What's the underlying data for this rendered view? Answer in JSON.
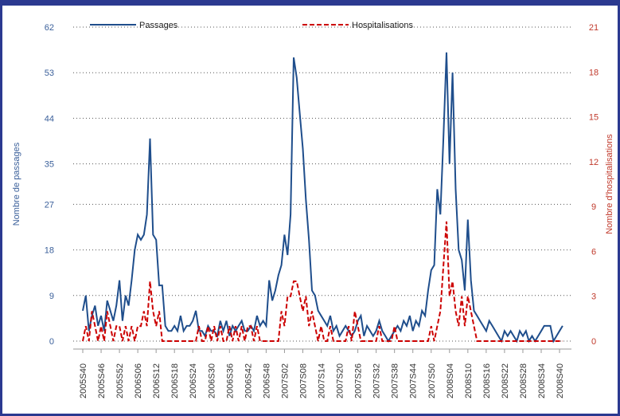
{
  "chart_data": {
    "type": "line",
    "y_label": "Nombre de passages",
    "y2_label": "Nombre d'hospitalisations",
    "categories": [
      "2005S40",
      null,
      null,
      null,
      null,
      null,
      "2005S46",
      null,
      null,
      null,
      null,
      null,
      "2005S52",
      null,
      null,
      null,
      null,
      null,
      "2006S06",
      null,
      null,
      null,
      null,
      null,
      "2006S12",
      null,
      null,
      null,
      null,
      null,
      "2006S18",
      null,
      null,
      null,
      null,
      null,
      "2006S24",
      null,
      null,
      null,
      null,
      null,
      "2006S30",
      null,
      null,
      null,
      null,
      null,
      "2006S36",
      null,
      null,
      null,
      null,
      null,
      "2006S42",
      null,
      null,
      null,
      null,
      null,
      "2006S48",
      null,
      null,
      null,
      null,
      null,
      "2007S02",
      null,
      null,
      null,
      null,
      null,
      "2007S08",
      null,
      null,
      null,
      null,
      null,
      "2007S14",
      null,
      null,
      null,
      null,
      null,
      "2007S20",
      null,
      null,
      null,
      null,
      null,
      "2007S26",
      null,
      null,
      null,
      null,
      null,
      "2007S32",
      null,
      null,
      null,
      null,
      null,
      "2007S38",
      null,
      null,
      null,
      null,
      null,
      "2007S44",
      null,
      null,
      null,
      null,
      null,
      "2007S50",
      null,
      null,
      null,
      null,
      null,
      "2008S04",
      null,
      null,
      null,
      null,
      null,
      "2008S10",
      null,
      null,
      null,
      null,
      null,
      "2008S16",
      null,
      null,
      null,
      null,
      null,
      "2008S22",
      null,
      null,
      null,
      null,
      null,
      "2008S28",
      null,
      null,
      null,
      null,
      null,
      "2008S34",
      null,
      null,
      null,
      null,
      null,
      "2008S40",
      null
    ],
    "series": [
      {
        "name": "Passages",
        "color": "#1f4e8c",
        "dash": false,
        "values": [
          6,
          9,
          2,
          5,
          7,
          3,
          5,
          2,
          8,
          6,
          4,
          7,
          12,
          4,
          9,
          7,
          12,
          18,
          21,
          20,
          21,
          25,
          40,
          21,
          20,
          11,
          11,
          3,
          2,
          2,
          3,
          2,
          5,
          2,
          3,
          3,
          4,
          6,
          2,
          2,
          1,
          3,
          2,
          2,
          1,
          4,
          2,
          4,
          1,
          3,
          2,
          3,
          4,
          2,
          2,
          3,
          2,
          5,
          3,
          4,
          3,
          12,
          8,
          10,
          13,
          15,
          21,
          17,
          25,
          56,
          52,
          45,
          38,
          28,
          20,
          10,
          9,
          6,
          5,
          4,
          3,
          5,
          2,
          3,
          1,
          2,
          3,
          2,
          1,
          2,
          4,
          5,
          1,
          3,
          2,
          1,
          2,
          4,
          2,
          1,
          0,
          1,
          2,
          3,
          2,
          4,
          3,
          5,
          2,
          4,
          3,
          6,
          5,
          10,
          14,
          15,
          30,
          25,
          40,
          57,
          35,
          53,
          30,
          18,
          16,
          10,
          24,
          12,
          6,
          5,
          4,
          3,
          2,
          4,
          3,
          2,
          1,
          0,
          2,
          1,
          2,
          1,
          0,
          2,
          1,
          2,
          0,
          1,
          0,
          1,
          2,
          3,
          3,
          3,
          0,
          1,
          2,
          3
        ]
      },
      {
        "name": "Hospitalisations",
        "color": "#cc0000",
        "dash": true,
        "axis": "y2",
        "values": [
          0,
          1,
          0,
          2,
          1,
          0,
          1,
          0,
          2,
          1,
          0,
          1,
          1,
          0,
          1,
          0,
          1,
          0,
          1,
          1,
          2,
          1,
          4,
          2,
          1,
          2,
          0,
          0,
          0,
          0,
          0,
          0,
          0,
          0,
          0,
          0,
          0,
          0,
          1,
          0,
          0,
          1,
          0,
          1,
          0,
          1,
          0,
          0,
          1,
          0,
          1,
          0,
          1,
          0,
          1,
          1,
          0,
          1,
          0,
          0,
          0,
          0,
          0,
          0,
          0,
          2,
          1,
          3,
          3,
          4,
          4,
          3,
          2,
          3,
          1,
          2,
          1,
          0,
          1,
          0,
          0,
          1,
          0,
          0,
          0,
          0,
          0,
          1,
          0,
          2,
          1,
          0,
          0,
          0,
          0,
          0,
          0,
          1,
          0,
          0,
          0,
          0,
          1,
          0,
          0,
          0,
          0,
          0,
          0,
          0,
          0,
          0,
          0,
          0,
          1,
          0,
          1,
          2,
          5,
          8,
          3,
          4,
          2,
          1,
          3,
          1,
          3,
          2,
          1,
          0,
          0,
          0,
          0,
          0,
          0,
          0,
          0,
          0,
          0,
          0,
          0,
          0,
          0,
          0,
          0,
          0,
          0,
          0,
          0,
          0,
          0,
          0,
          0,
          0,
          0,
          0,
          0,
          0
        ]
      }
    ],
    "ylim": [
      0,
      62
    ],
    "yticks": [
      0,
      9,
      18,
      27,
      35,
      44,
      53,
      62
    ],
    "y2lim": [
      0,
      21
    ],
    "y2ticks": [
      0,
      3,
      6,
      9,
      12,
      15,
      18,
      21
    ],
    "grid": true
  }
}
